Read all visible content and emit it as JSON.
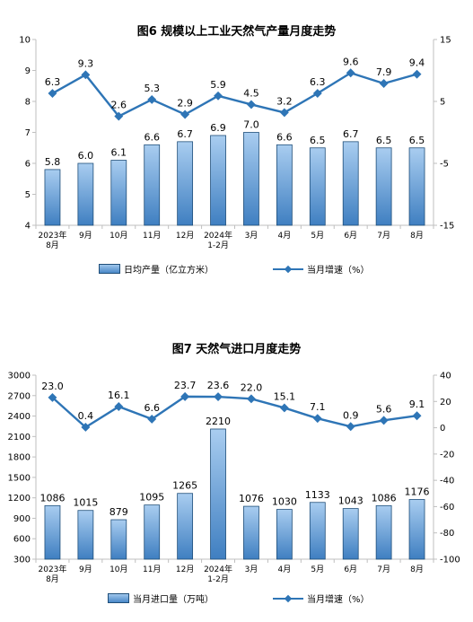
{
  "chart_data": [
    {
      "type": "bar+line",
      "title": "图6  规模以上工业天然气产量月度走势",
      "categories": [
        "2023年\n8月",
        "9月",
        "10月",
        "11月",
        "12月",
        "2024年\n1-2月",
        "3月",
        "4月",
        "5月",
        "6月",
        "7月",
        "8月"
      ],
      "series": [
        {
          "name": "日均产量（亿立方米）",
          "kind": "bar",
          "axis": "left",
          "values": [
            5.8,
            6.0,
            6.1,
            6.6,
            6.7,
            6.9,
            7.0,
            6.6,
            6.5,
            6.7,
            6.5,
            6.5
          ]
        },
        {
          "name": "当月增速（%）",
          "kind": "line",
          "axis": "right",
          "values": [
            6.3,
            9.3,
            2.6,
            5.3,
            2.9,
            5.9,
            4.5,
            3.2,
            6.3,
            9.6,
            7.9,
            9.4
          ]
        }
      ],
      "ylim_left": [
        4,
        10
      ],
      "yticks_left": [
        4,
        5,
        6,
        7,
        8,
        9,
        10
      ],
      "ylim_right": [
        -15,
        15
      ],
      "yticks_right": [
        -15,
        -5,
        5,
        15
      ],
      "grid": false,
      "legend": "bottom",
      "colors": {
        "bar": "#5b9bd5",
        "line": "#2e75b6"
      }
    },
    {
      "type": "bar+line",
      "title": "图7  天然气进口月度走势",
      "categories": [
        "2023年\n8月",
        "9月",
        "10月",
        "11月",
        "12月",
        "2024年\n1-2月",
        "3月",
        "4月",
        "5月",
        "6月",
        "7月",
        "8月"
      ],
      "series": [
        {
          "name": "当月进口量（万吨）",
          "kind": "bar",
          "axis": "left",
          "values": [
            1086,
            1015,
            879,
            1095,
            1265,
            2210,
            1076,
            1030,
            1133,
            1043,
            1086,
            1176
          ]
        },
        {
          "name": "当月增速（%）",
          "kind": "line",
          "axis": "right",
          "values": [
            23.0,
            0.4,
            16.1,
            6.6,
            23.7,
            23.6,
            22.0,
            15.1,
            7.1,
            0.9,
            5.6,
            9.1
          ]
        }
      ],
      "ylim_left": [
        300,
        3000
      ],
      "yticks_left": [
        300,
        600,
        900,
        1200,
        1500,
        1800,
        2100,
        2400,
        2700,
        3000
      ],
      "ylim_right": [
        -100,
        40
      ],
      "yticks_right": [
        -100,
        -80,
        -60,
        -40,
        -20,
        0,
        20,
        40
      ],
      "grid": false,
      "legend": "bottom",
      "colors": {
        "bar": "#5b9bd5",
        "line": "#2e75b6"
      }
    }
  ]
}
